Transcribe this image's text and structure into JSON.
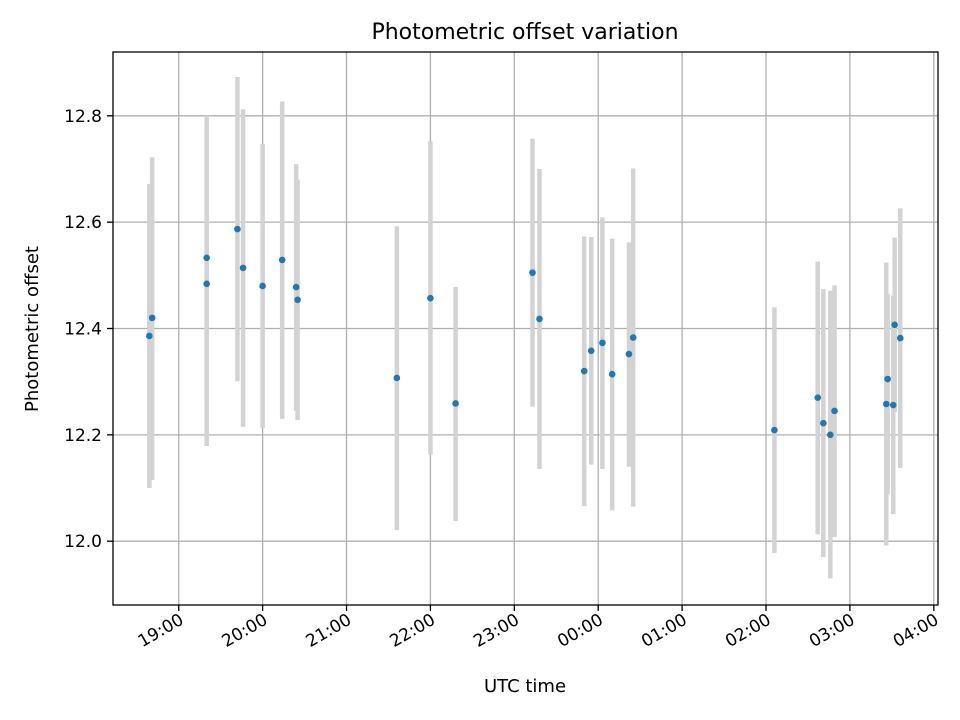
{
  "chart_data": {
    "type": "scatter",
    "title": "Photometric offset variation",
    "xlabel": "UTC time",
    "ylabel": "Photometric offset",
    "xlim": [
      "2023-01-01 18:13",
      "2023-01-02 04:03"
    ],
    "ylim": [
      11.88,
      12.92
    ],
    "x_ticks": [
      {
        "value": "2023-01-01 19:00",
        "label": "19:00"
      },
      {
        "value": "2023-01-01 20:00",
        "label": "20:00"
      },
      {
        "value": "2023-01-01 21:00",
        "label": "21:00"
      },
      {
        "value": "2023-01-01 22:00",
        "label": "22:00"
      },
      {
        "value": "2023-01-01 23:00",
        "label": "23:00"
      },
      {
        "value": "2023-01-02 00:00",
        "label": "00:00"
      },
      {
        "value": "2023-01-02 01:00",
        "label": "01:00"
      },
      {
        "value": "2023-01-02 02:00",
        "label": "02:00"
      },
      {
        "value": "2023-01-02 03:00",
        "label": "03:00"
      },
      {
        "value": "2023-01-02 04:00",
        "label": "04:00"
      }
    ],
    "y_ticks": [
      {
        "value": 12.0,
        "label": "12.0"
      },
      {
        "value": 12.2,
        "label": "12.2"
      },
      {
        "value": 12.4,
        "label": "12.4"
      },
      {
        "value": 12.6,
        "label": "12.6"
      },
      {
        "value": 12.8,
        "label": "12.8"
      }
    ],
    "grid": true,
    "colors": {
      "point": "#1f77b4",
      "errorbar": "#d3d3d3"
    },
    "points": [
      {
        "x": "2023-01-01 18:39",
        "y": 12.386,
        "ylo": 12.1,
        "yhi": 12.672
      },
      {
        "x": "2023-01-01 18:41",
        "y": 12.42,
        "ylo": 12.115,
        "yhi": 12.722
      },
      {
        "x": "2023-01-01 19:20",
        "y": 12.533,
        "ylo": 12.266,
        "yhi": 12.8
      },
      {
        "x": "2023-01-01 19:20",
        "y": 12.484,
        "ylo": 12.179,
        "yhi": 12.789
      },
      {
        "x": "2023-01-01 19:42",
        "y": 12.587,
        "ylo": 12.301,
        "yhi": 12.873
      },
      {
        "x": "2023-01-01 19:46",
        "y": 12.514,
        "ylo": 12.215,
        "yhi": 12.812
      },
      {
        "x": "2023-01-01 20:00",
        "y": 12.48,
        "ylo": 12.213,
        "yhi": 12.747
      },
      {
        "x": "2023-01-01 20:14",
        "y": 12.529,
        "ylo": 12.23,
        "yhi": 12.827
      },
      {
        "x": "2023-01-01 20:24",
        "y": 12.478,
        "ylo": 12.245,
        "yhi": 12.709
      },
      {
        "x": "2023-01-01 20:25",
        "y": 12.454,
        "ylo": 12.228,
        "yhi": 12.68
      },
      {
        "x": "2023-01-01 21:36",
        "y": 12.307,
        "ylo": 12.021,
        "yhi": 12.592
      },
      {
        "x": "2023-01-01 22:00",
        "y": 12.457,
        "ylo": 12.163,
        "yhi": 12.752
      },
      {
        "x": "2023-01-01 22:18",
        "y": 12.259,
        "ylo": 12.038,
        "yhi": 12.478
      },
      {
        "x": "2023-01-01 23:13",
        "y": 12.505,
        "ylo": 12.253,
        "yhi": 12.757
      },
      {
        "x": "2023-01-01 23:18",
        "y": 12.418,
        "ylo": 12.136,
        "yhi": 12.7
      },
      {
        "x": "2023-01-01 23:50",
        "y": 12.32,
        "ylo": 12.066,
        "yhi": 12.573
      },
      {
        "x": "2023-01-01 23:55",
        "y": 12.358,
        "ylo": 12.144,
        "yhi": 12.572
      },
      {
        "x": "2023-01-02 00:03",
        "y": 12.373,
        "ylo": 12.136,
        "yhi": 12.609
      },
      {
        "x": "2023-01-02 00:10",
        "y": 12.314,
        "ylo": 12.058,
        "yhi": 12.569
      },
      {
        "x": "2023-01-02 00:22",
        "y": 12.352,
        "ylo": 12.14,
        "yhi": 12.562
      },
      {
        "x": "2023-01-02 00:25",
        "y": 12.383,
        "ylo": 12.065,
        "yhi": 12.701
      },
      {
        "x": "2023-01-02 02:06",
        "y": 12.209,
        "ylo": 11.978,
        "yhi": 12.44
      },
      {
        "x": "2023-01-02 02:37",
        "y": 12.27,
        "ylo": 12.013,
        "yhi": 12.526
      },
      {
        "x": "2023-01-02 02:41",
        "y": 12.222,
        "ylo": 11.97,
        "yhi": 12.474
      },
      {
        "x": "2023-01-02 02:46",
        "y": 12.2,
        "ylo": 11.93,
        "yhi": 12.471
      },
      {
        "x": "2023-01-02 02:49",
        "y": 12.245,
        "ylo": 12.008,
        "yhi": 12.481
      },
      {
        "x": "2023-01-02 03:26",
        "y": 12.258,
        "ylo": 11.992,
        "yhi": 12.524
      },
      {
        "x": "2023-01-02 03:27",
        "y": 12.305,
        "ylo": 12.088,
        "yhi": 12.465
      },
      {
        "x": "2023-01-02 03:31",
        "y": 12.256,
        "ylo": 12.051,
        "yhi": 12.462
      },
      {
        "x": "2023-01-02 03:32",
        "y": 12.407,
        "ylo": 12.243,
        "yhi": 12.571
      },
      {
        "x": "2023-01-02 03:36",
        "y": 12.382,
        "ylo": 12.138,
        "yhi": 12.626
      }
    ]
  }
}
